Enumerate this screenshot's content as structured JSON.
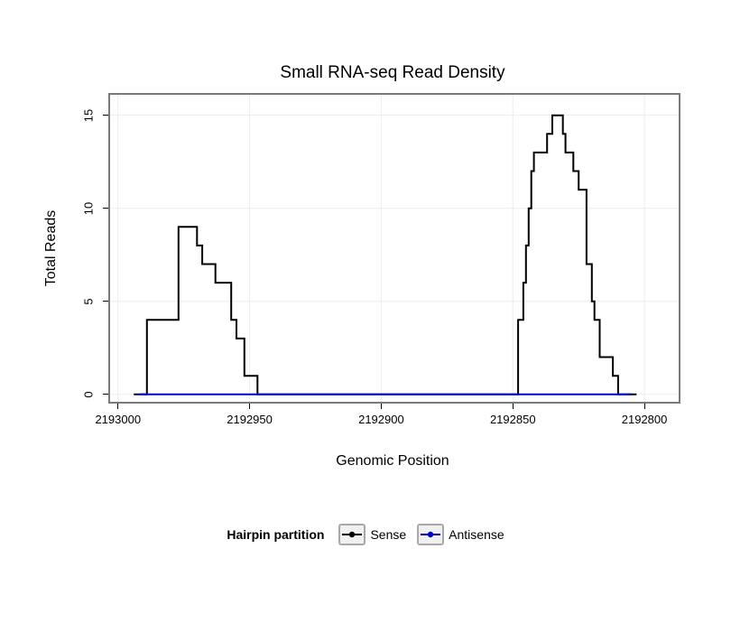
{
  "title": "Small RNA-seq Read Density",
  "x_axis": {
    "label": "Genomic Position"
  },
  "y_axis": {
    "label": "Total Reads"
  },
  "legend": {
    "title": "Hairpin partition",
    "entries": [
      {
        "label": "Sense",
        "color": "#000000"
      },
      {
        "label": "Antisense",
        "color": "#0000cc"
      }
    ]
  },
  "chart_data": {
    "type": "line",
    "step": true,
    "title": "Small RNA-seq Read Density",
    "xlabel": "Genomic Position",
    "ylabel": "Total Reads",
    "x_axis_reversed": true,
    "x_domain": [
      2193003,
      2192787
    ],
    "y_domain": [
      -0.4,
      16.1
    ],
    "x_ticks": [
      2193000,
      2192950,
      2192900,
      2192850,
      2192800
    ],
    "x_tick_labels": [
      "2193000",
      "2192950",
      "2192900",
      "2192850",
      "2192800"
    ],
    "y_ticks": [
      0,
      5,
      10,
      15
    ],
    "y_tick_labels": [
      "0",
      "5",
      "10",
      "15"
    ],
    "grid_color": "#ececec",
    "legend_position": "bottom",
    "series": [
      {
        "name": "Sense",
        "color": "#000000",
        "points": [
          [
            2192994,
            0
          ],
          [
            2192989,
            4
          ],
          [
            2192977,
            9
          ],
          [
            2192970,
            8
          ],
          [
            2192968,
            7
          ],
          [
            2192963,
            6
          ],
          [
            2192957,
            4
          ],
          [
            2192955,
            3
          ],
          [
            2192952,
            1
          ],
          [
            2192947,
            0
          ],
          [
            2192848,
            4
          ],
          [
            2192846,
            6
          ],
          [
            2192845,
            8
          ],
          [
            2192844,
            10
          ],
          [
            2192843,
            12
          ],
          [
            2192842,
            13
          ],
          [
            2192837,
            14
          ],
          [
            2192835,
            15
          ],
          [
            2192831,
            14
          ],
          [
            2192830,
            13
          ],
          [
            2192827,
            12
          ],
          [
            2192825,
            11
          ],
          [
            2192822,
            7
          ],
          [
            2192820,
            5
          ],
          [
            2192819,
            4
          ],
          [
            2192817,
            2
          ],
          [
            2192812,
            1
          ],
          [
            2192810,
            0
          ],
          [
            2192803,
            0
          ]
        ]
      },
      {
        "name": "Antisense",
        "color": "#0000cc",
        "points": [
          [
            2192992,
            0
          ],
          [
            2192805,
            0
          ]
        ]
      }
    ]
  }
}
